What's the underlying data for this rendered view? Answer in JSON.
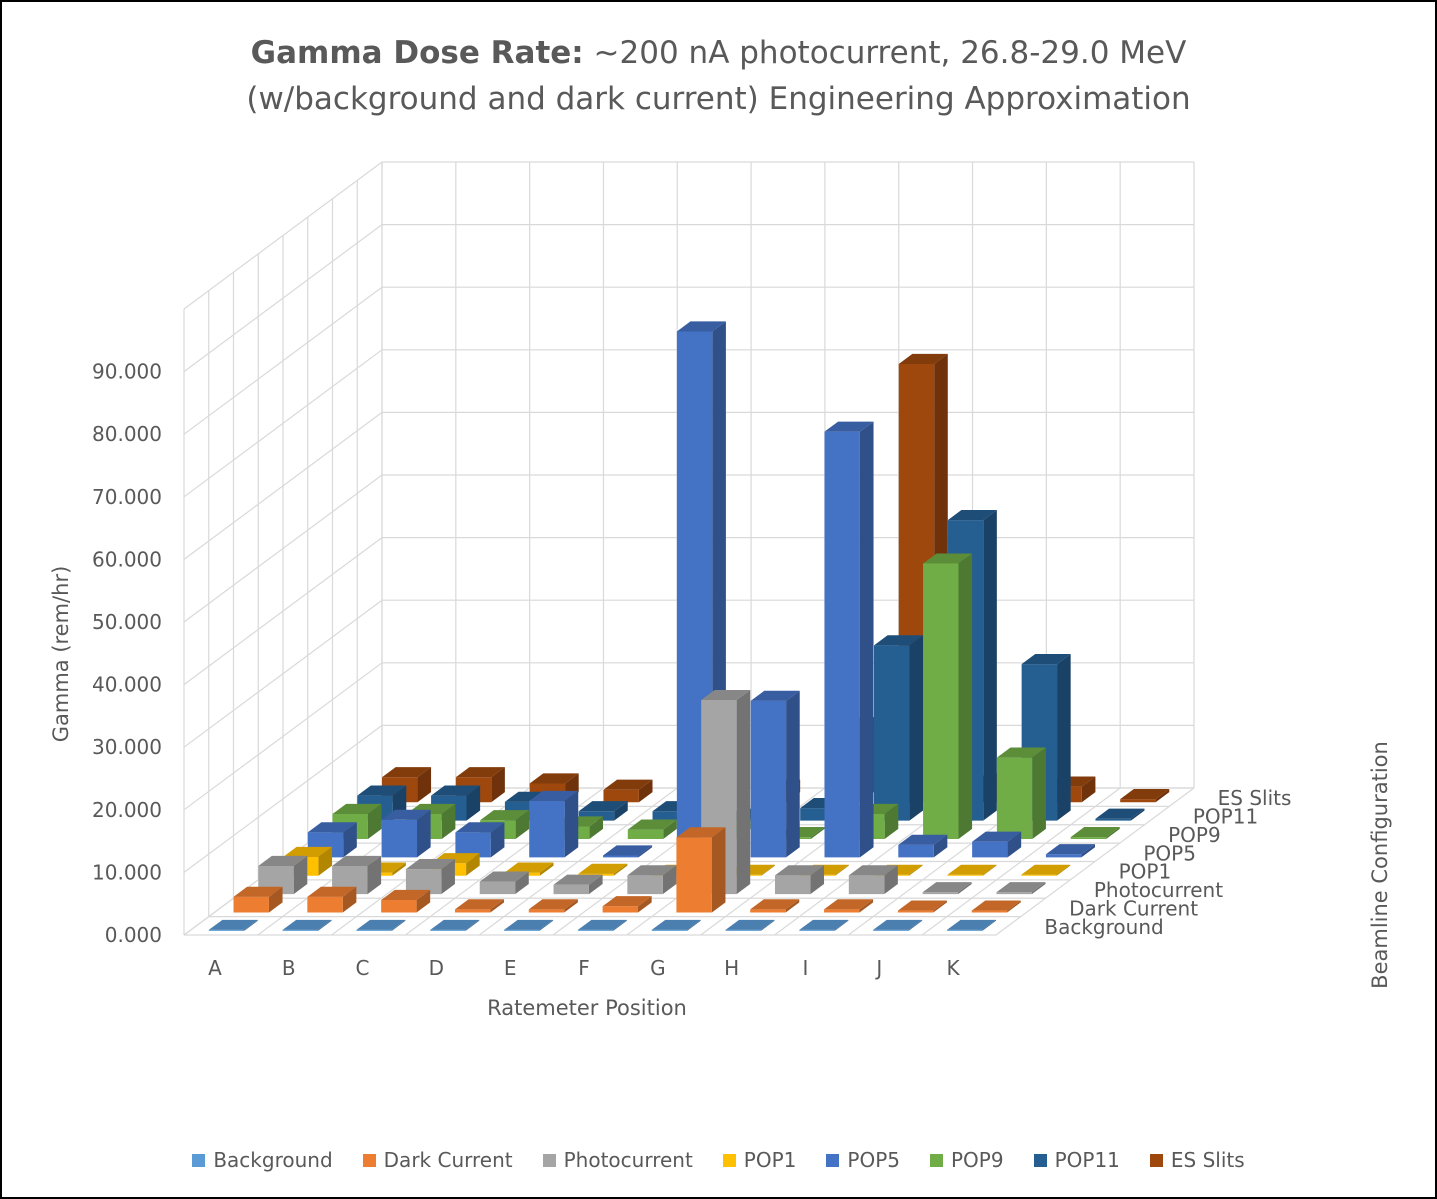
{
  "title": {
    "bold": "Gamma Dose Rate:",
    "rest": "~200 nA photocurrent, 26.8-29.0 MeV",
    "line2": "(w/background and dark current) Engineering Approximation"
  },
  "chart_data": {
    "type": "bar",
    "subtype": "3d-column",
    "ylabel": "Gamma (rem/hr)",
    "xlabel": "Ratemeter Position",
    "zlabel": "Beamline Configuration",
    "ylim": [
      0,
      90
    ],
    "y_ticks": [
      "0.000",
      "10.000",
      "20.000",
      "30.000",
      "40.000",
      "50.000",
      "60.000",
      "70.000",
      "80.000",
      "90.000"
    ],
    "categories": [
      "A",
      "B",
      "C",
      "D",
      "E",
      "F",
      "G",
      "H",
      "I",
      "J",
      "K"
    ],
    "grid": true,
    "legend_position": "bottom",
    "series": [
      {
        "name": "Background",
        "color": "#5B9BD5",
        "values": [
          0.1,
          0.1,
          0.1,
          0.1,
          0.1,
          0.1,
          0.1,
          0.1,
          0.1,
          0.1,
          0.1
        ]
      },
      {
        "name": "Dark Current",
        "color": "#ED7D31",
        "values": [
          2.5,
          2.5,
          2.0,
          0.5,
          0.5,
          1.0,
          12.0,
          0.5,
          0.5,
          0.3,
          0.3
        ]
      },
      {
        "name": "Photocurrent",
        "color": "#A5A5A5",
        "values": [
          4.5,
          4.5,
          4.0,
          2.0,
          1.5,
          3.0,
          31.0,
          3.0,
          3.0,
          0.3,
          0.3
        ]
      },
      {
        "name": "POP1",
        "color": "#FFC000",
        "values": [
          3.0,
          0.5,
          2.0,
          0.5,
          0.3,
          0.1,
          0.1,
          0.1,
          0.1,
          0.1,
          0.1
        ]
      },
      {
        "name": "POP5",
        "color": "#4472C4",
        "values": [
          4.0,
          6.0,
          4.0,
          9.0,
          0.3,
          84.0,
          25.0,
          68.0,
          2.0,
          2.5,
          0.5
        ]
      },
      {
        "name": "POP9",
        "color": "#70AD47",
        "values": [
          4.0,
          4.0,
          3.0,
          2.0,
          1.5,
          1.5,
          0.3,
          4.0,
          44.0,
          13.0,
          0.3
        ]
      },
      {
        "name": "POP11",
        "color": "#255E91",
        "values": [
          4.0,
          4.0,
          3.0,
          1.5,
          1.5,
          0.3,
          2.0,
          28.0,
          48.0,
          25.0,
          0.3
        ]
      },
      {
        "name": "ES Slits",
        "color": "#9E480E",
        "values": [
          4.0,
          4.0,
          3.0,
          2.0,
          2.0,
          2.0,
          12.0,
          70.0,
          3.0,
          2.5,
          0.5
        ]
      }
    ]
  }
}
